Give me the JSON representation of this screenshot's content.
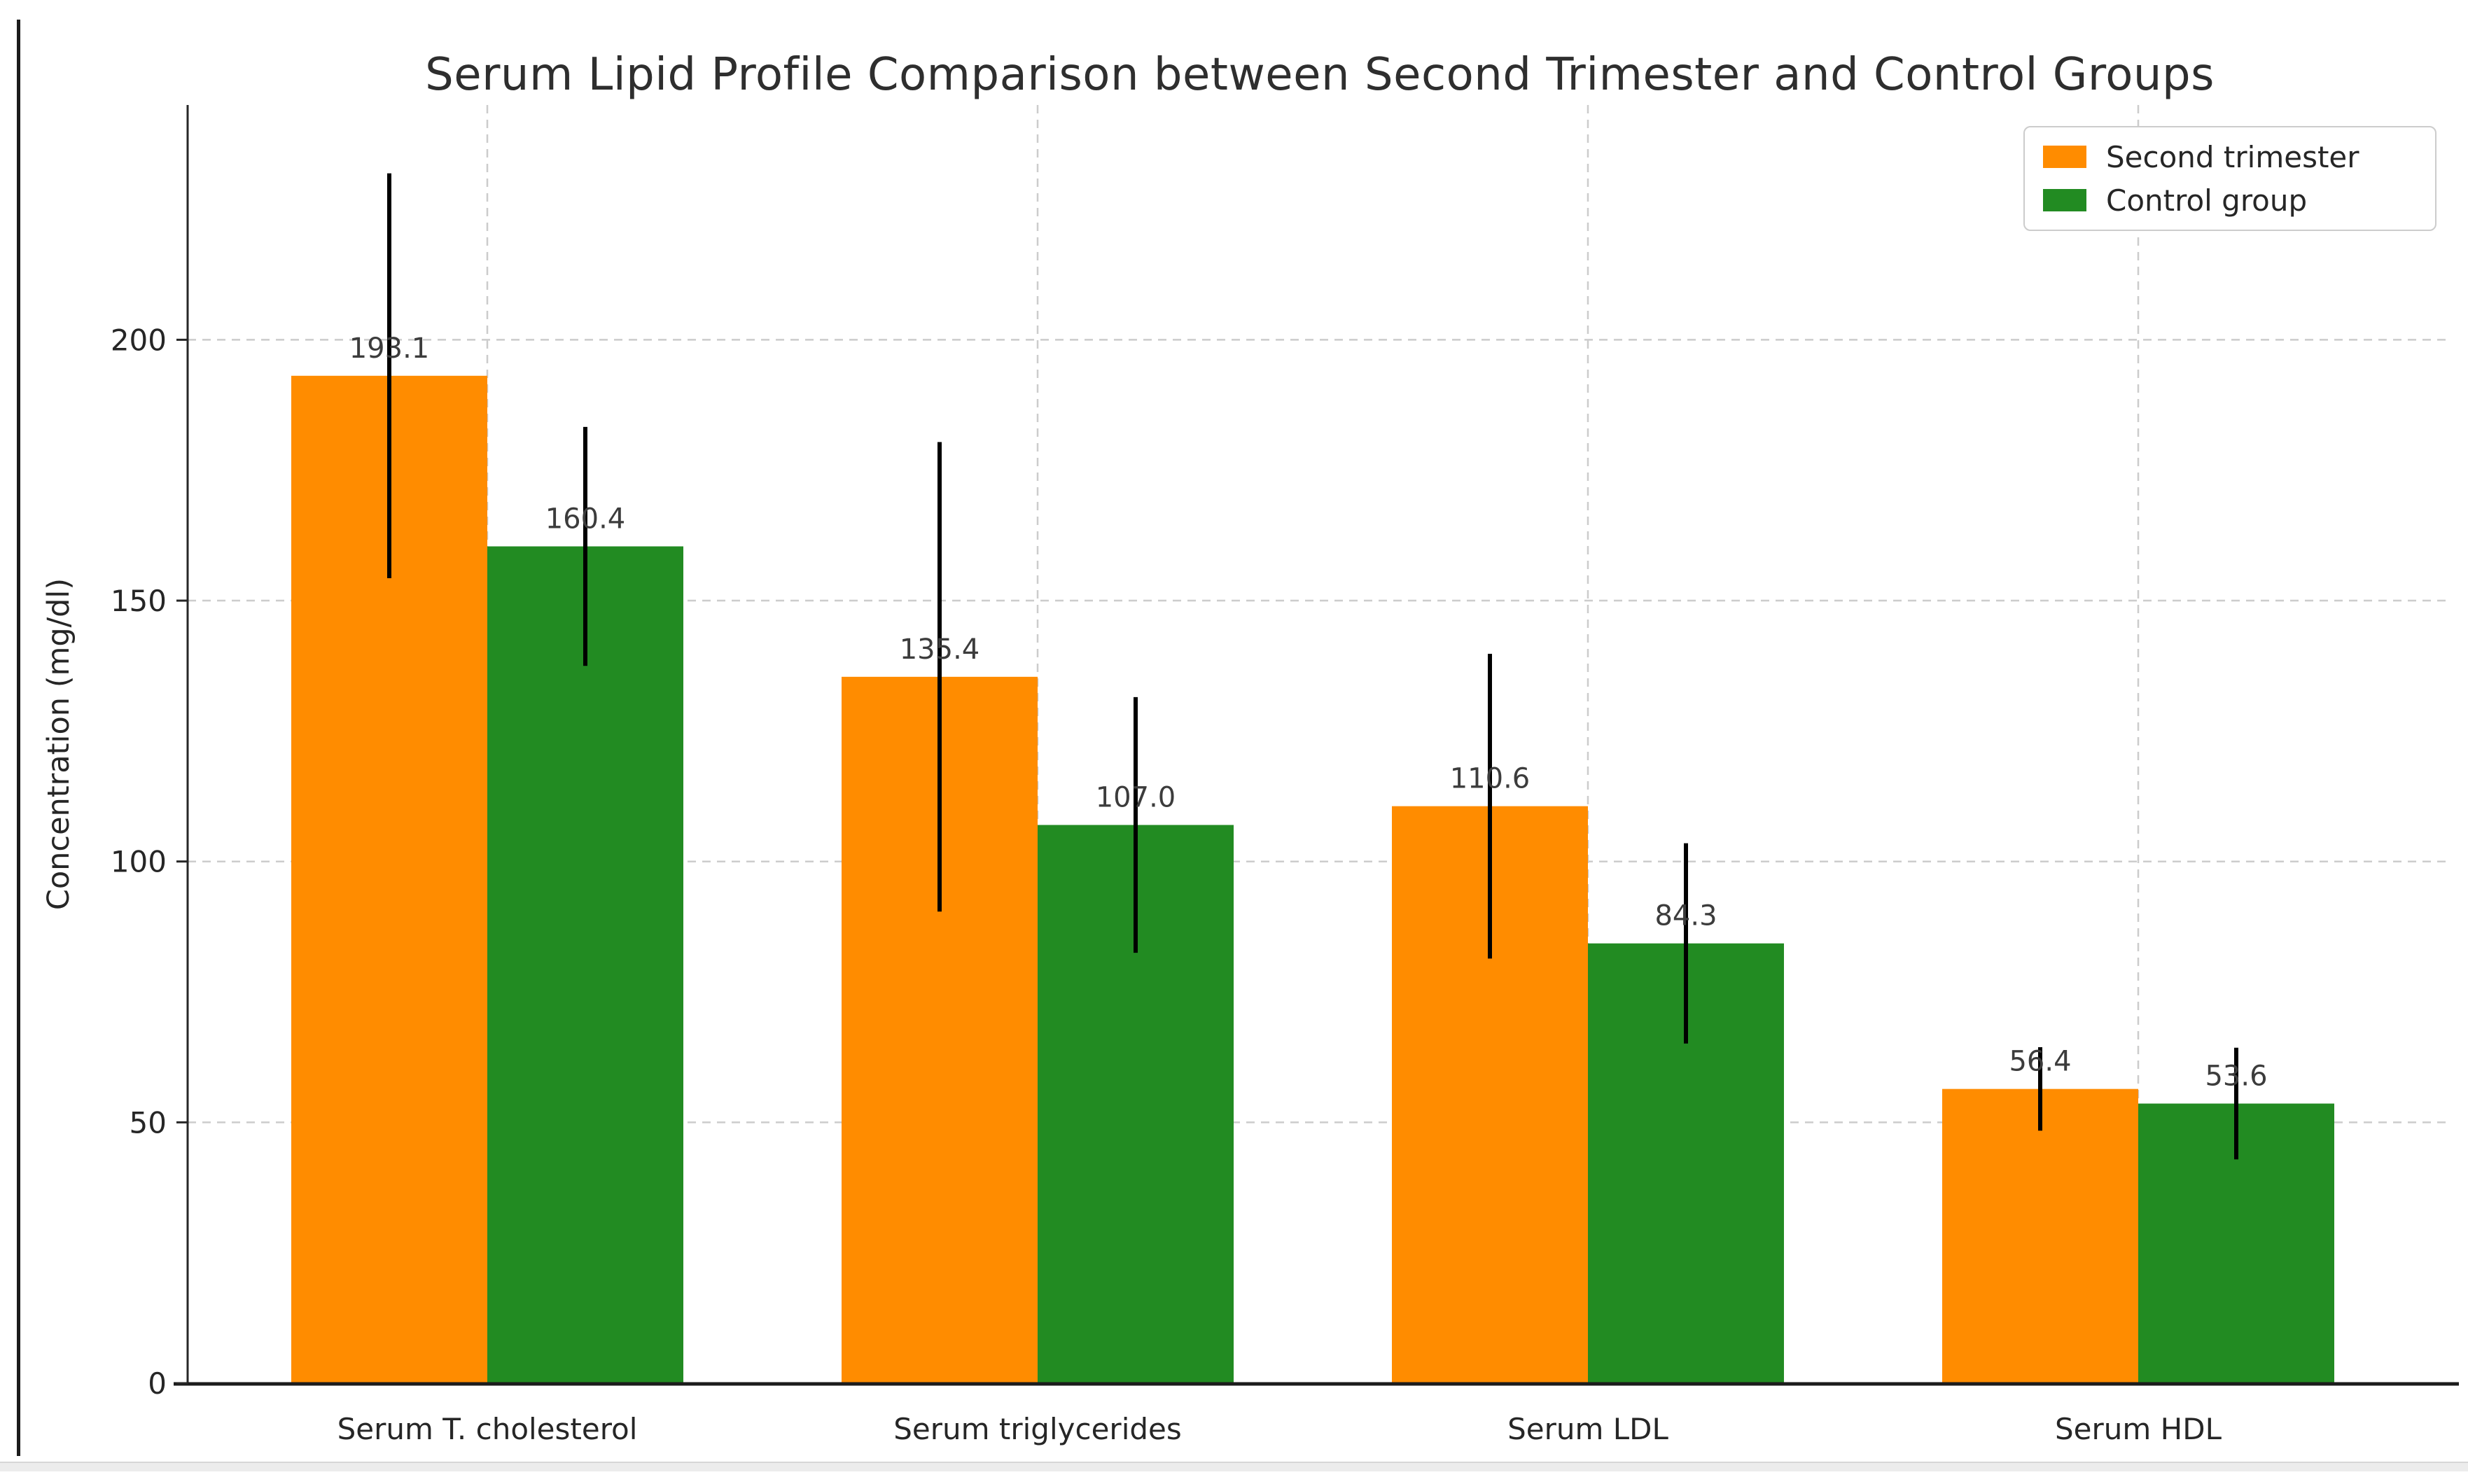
{
  "chart_data": {
    "type": "bar",
    "title": "Serum Lipid Profile Comparison between Second Trimester and Control Groups",
    "xlabel": "",
    "ylabel": "Concentration (mg/dl)",
    "categories": [
      "Serum T. cholesterol",
      "Serum triglycerides",
      "Serum LDL",
      "Serum HDL"
    ],
    "series": [
      {
        "name": "Second trimester",
        "color": "#ff8c00",
        "values": [
          193.1,
          135.4,
          110.6,
          56.4
        ],
        "errors": [
          38.8,
          45.0,
          29.2,
          8.0
        ]
      },
      {
        "name": "Control group",
        "color": "#228b22",
        "values": [
          160.4,
          107.0,
          84.3,
          53.6
        ],
        "errors": [
          22.9,
          24.5,
          19.2,
          10.7
        ]
      }
    ],
    "value_labels": [
      [
        "193.1",
        "135.4",
        "110.6",
        "56.4"
      ],
      [
        "160.4",
        "107.0",
        "84.3",
        "53.6"
      ]
    ],
    "y_ticks": [
      0,
      50,
      100,
      150,
      200
    ],
    "ylim": [
      0,
      245
    ],
    "grid": {
      "horizontal": true,
      "vertical": true,
      "style": "dashed",
      "color": "#cccccc"
    },
    "legend": {
      "position": "upper-right"
    },
    "error_bar_color": "#000000",
    "axis_color": "#262626"
  }
}
